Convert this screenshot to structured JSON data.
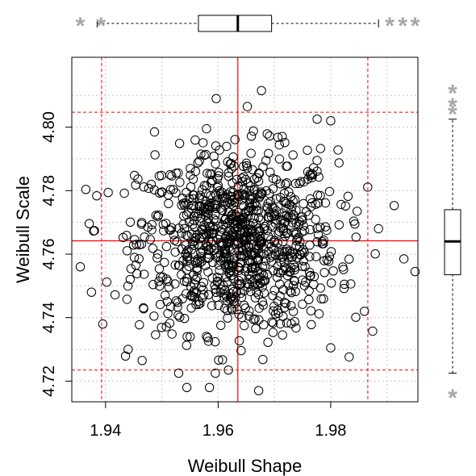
{
  "chart_data": {
    "type": "scatter",
    "xlabel": "Weibull Shape",
    "ylabel": "Weibull Scale",
    "xlim": [
      1.934,
      1.9955
    ],
    "ylim": [
      4.7135,
      4.822
    ],
    "x_ticks": [
      1.94,
      1.96,
      1.98
    ],
    "y_ticks": [
      4.72,
      4.74,
      4.76,
      4.78,
      4.8
    ],
    "x_tick_labels": [
      "1.94",
      "1.96",
      "1.98"
    ],
    "y_tick_labels": [
      "4.72",
      "4.74",
      "4.76",
      "4.78",
      "4.80"
    ],
    "grid_x": [
      1.94,
      1.95,
      1.96,
      1.97,
      1.98,
      1.99
    ],
    "grid_y": [
      4.72,
      4.73,
      4.74,
      4.75,
      4.76,
      4.77,
      4.78,
      4.79,
      4.8,
      4.81
    ],
    "grid": true,
    "point_count": 1000,
    "x_center": 1.9635,
    "y_center": 4.764,
    "x_spread": 0.0088,
    "y_spread": 0.0142,
    "sample_points": [
      {
        "x": 1.9677,
        "y": 4.8115
      },
      {
        "x": 1.9652,
        "y": 4.8065
      },
      {
        "x": 1.9672,
        "y": 4.717
      },
      {
        "x": 1.9355,
        "y": 4.756
      },
      {
        "x": 1.9395,
        "y": 4.738
      },
      {
        "x": 1.995,
        "y": 4.7545
      },
      {
        "x": 1.993,
        "y": 4.7585
      },
      {
        "x": 1.9885,
        "y": 4.768
      },
      {
        "x": 1.98,
        "y": 4.802
      },
      {
        "x": 1.953,
        "y": 4.7225
      },
      {
        "x": 1.9465,
        "y": 4.7265
      },
      {
        "x": 1.9595,
        "y": 4.7225
      },
      {
        "x": 1.9375,
        "y": 4.748
      },
      {
        "x": 1.9487,
        "y": 4.7985
      },
      {
        "x": 1.9776,
        "y": 4.8025
      },
      {
        "x": 1.98,
        "y": 4.7305
      },
      {
        "x": 1.986,
        "y": 4.742
      },
      {
        "x": 1.944,
        "y": 4.73
      }
    ],
    "reference_lines": {
      "x_mean": 1.9635,
      "x_lower": 1.9393,
      "x_upper": 1.9866,
      "y_mean": 4.7642,
      "y_lower": 4.7235,
      "y_upper": 4.8047,
      "color": "#ff0000"
    },
    "x_boxplot": {
      "whisker_low": 1.9385,
      "q1": 1.9565,
      "median": 1.9635,
      "q3": 1.9695,
      "whisker_high": 1.9885,
      "outliers": [
        1.9355,
        1.9392,
        1.9905,
        1.9928,
        1.995
      ],
      "outlier_color": "#a8a8a8"
    },
    "y_boxplot": {
      "whisker_low": 4.7225,
      "q1": 4.7535,
      "median": 4.764,
      "q3": 4.774,
      "whisker_high": 4.8025,
      "outliers": [
        4.7155,
        4.8048,
        4.8072,
        4.8115
      ],
      "outlier_color": "#a8a8a8"
    }
  }
}
